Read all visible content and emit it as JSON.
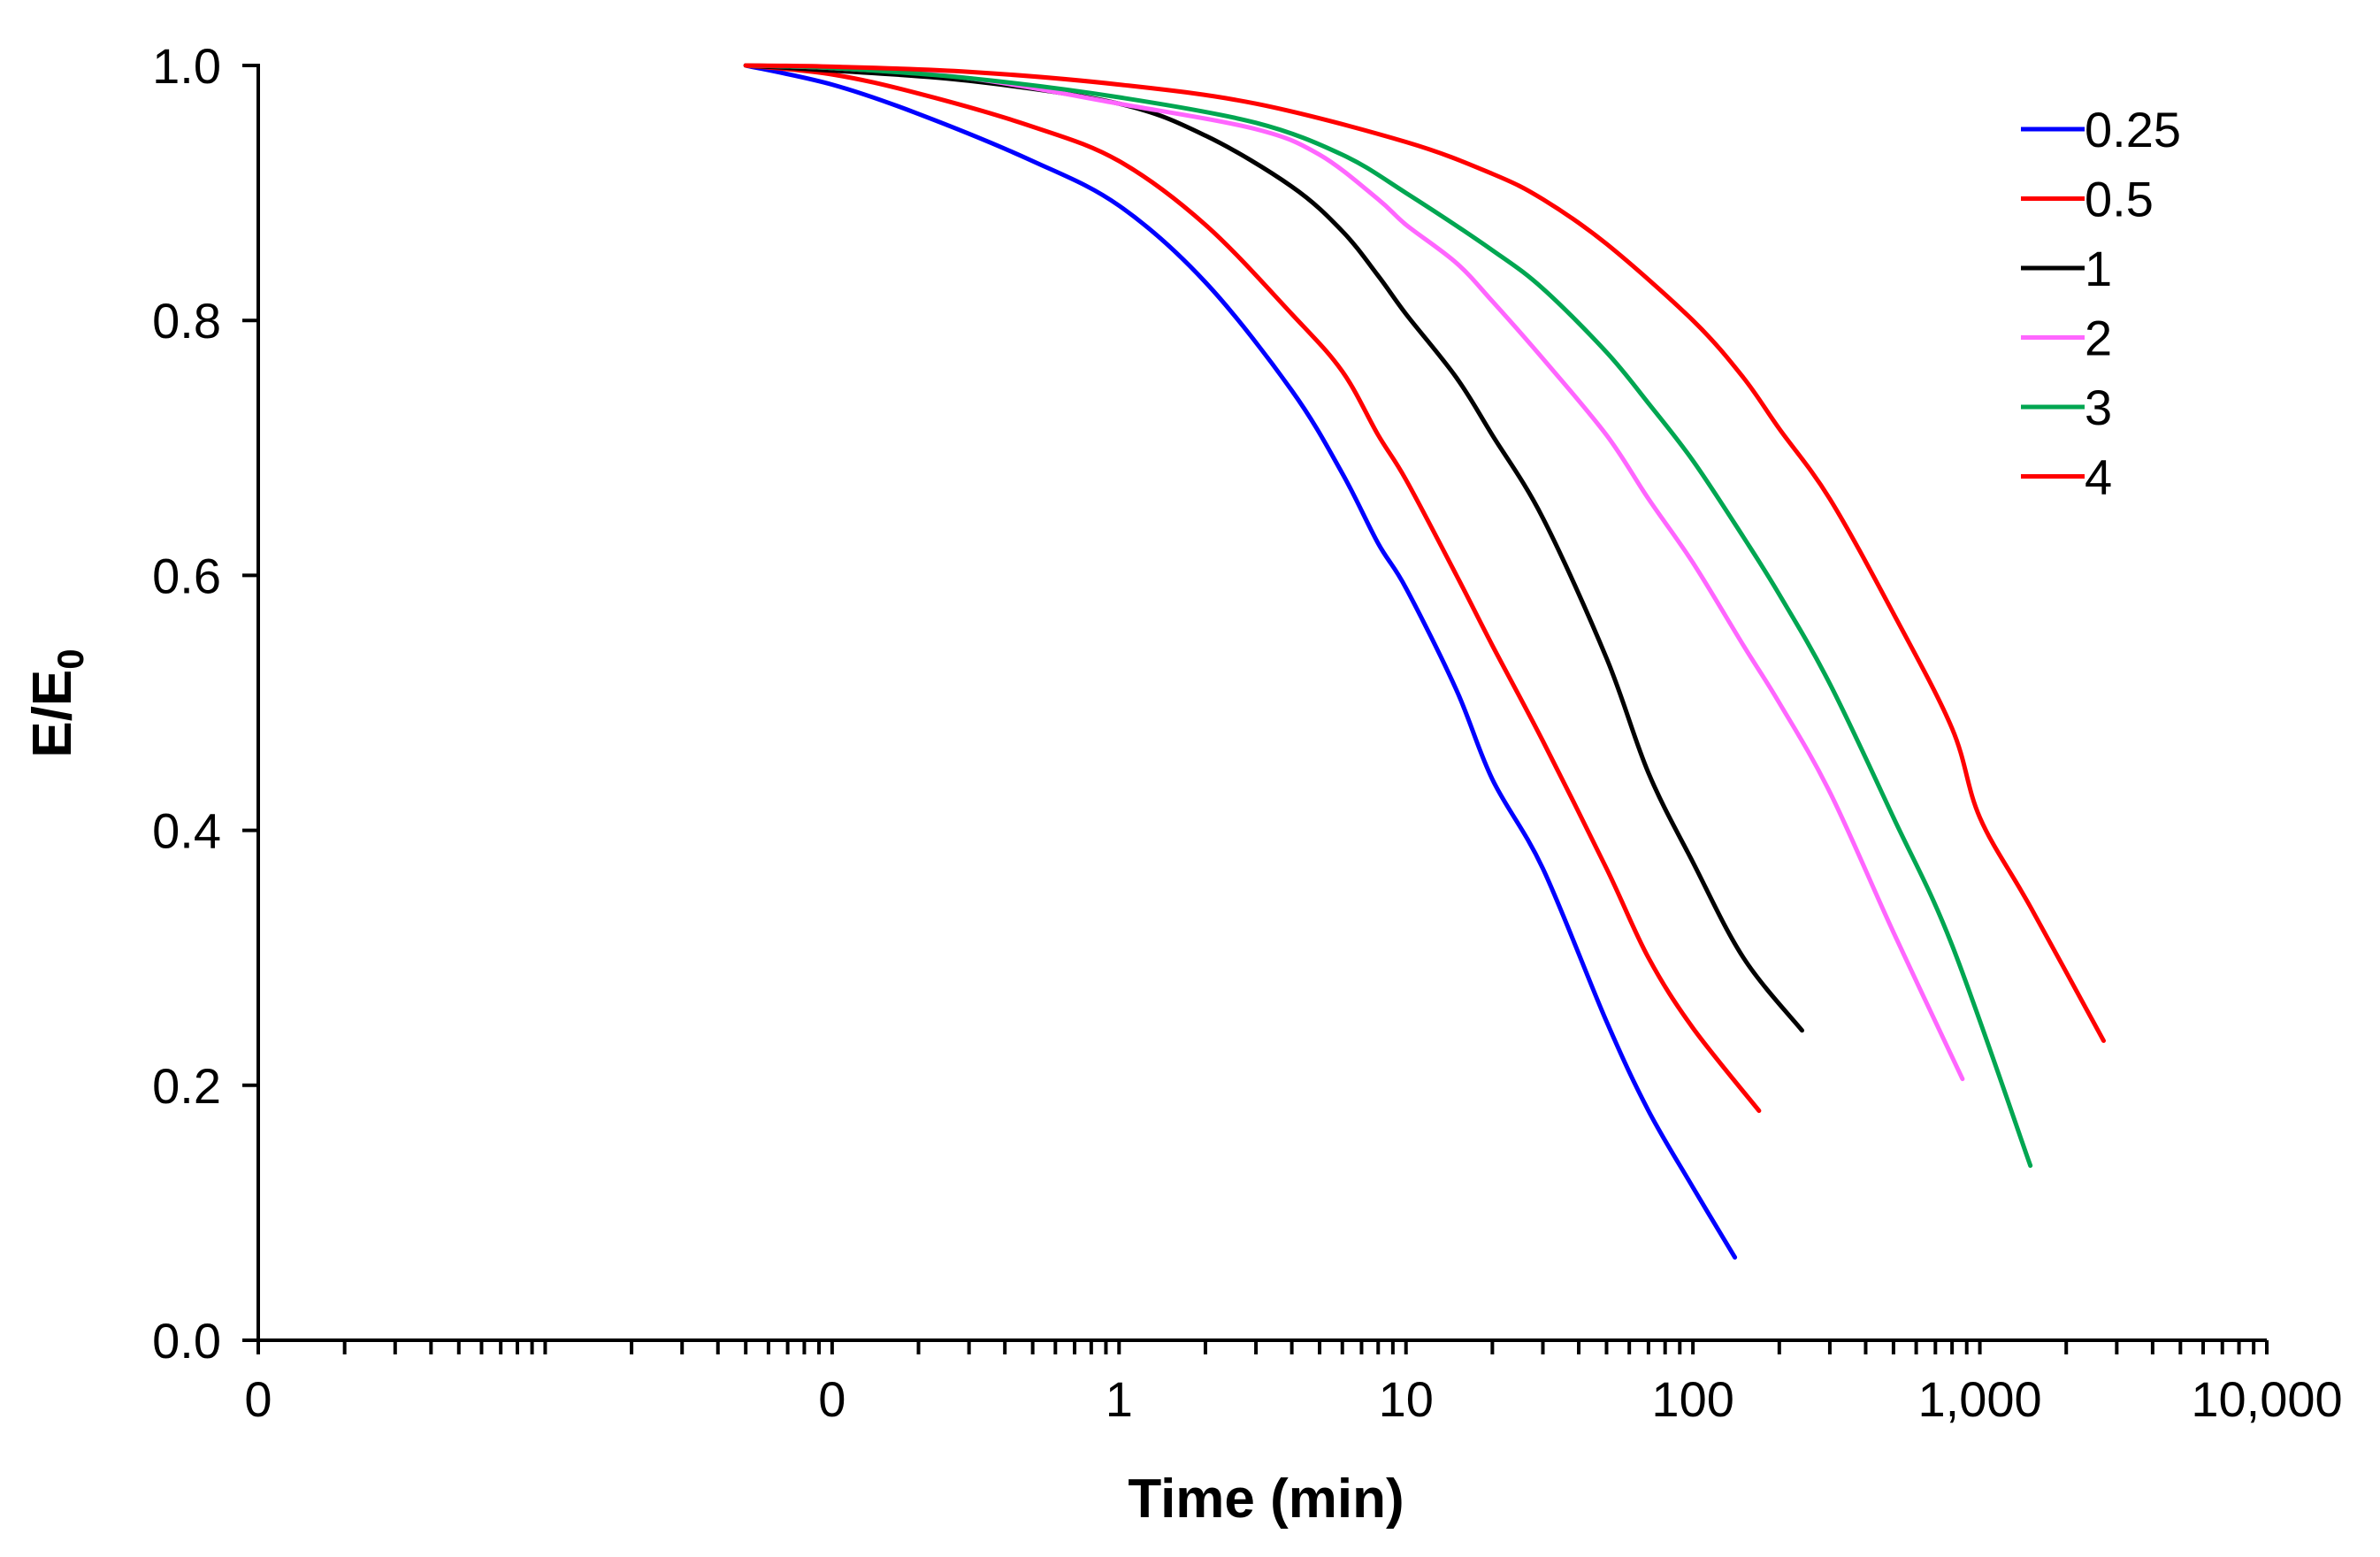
{
  "chart_data": {
    "type": "line",
    "title": "",
    "xlabel": "Time (min)",
    "ylabel_main": "E/E",
    "ylabel_sub": "0",
    "x_scale": "log",
    "xlim": [
      0.001,
      10000
    ],
    "ylim": [
      0.0,
      1.0
    ],
    "x_tick_values": [
      0.001,
      0.01,
      0.1,
      1,
      10,
      100,
      1000,
      10000
    ],
    "x_tick_labels": [
      "0",
      "",
      "0",
      "1",
      "10",
      "100",
      "1,000",
      "10,000"
    ],
    "y_tick_values": [
      0.0,
      0.2,
      0.4,
      0.6,
      0.8,
      1.0
    ],
    "y_tick_labels": [
      "0.0",
      "0.2",
      "0.4",
      "0.6",
      "0.8",
      "1.0"
    ],
    "legend_position": "top-right",
    "series": [
      {
        "name": "0.25",
        "color": "#0000ff",
        "x": [
          0.05,
          0.1,
          0.2,
          0.5,
          1,
          2,
          4,
          6,
          8,
          10,
          15,
          20,
          30,
          50,
          70,
          100,
          140
        ],
        "y": [
          1.0,
          0.985,
          0.962,
          0.925,
          0.89,
          0.83,
          0.745,
          0.68,
          0.625,
          0.59,
          0.51,
          0.44,
          0.37,
          0.25,
          0.18,
          0.12,
          0.065
        ]
      },
      {
        "name": "0.5",
        "color": "#ff0000",
        "x": [
          0.05,
          0.1,
          0.2,
          0.5,
          1,
          2,
          4,
          6,
          8,
          10,
          15,
          20,
          30,
          50,
          70,
          100,
          170
        ],
        "y": [
          1.0,
          0.993,
          0.978,
          0.952,
          0.925,
          0.875,
          0.805,
          0.76,
          0.71,
          0.675,
          0.6,
          0.545,
          0.47,
          0.37,
          0.3,
          0.245,
          0.18
        ]
      },
      {
        "name": "1",
        "color": "#000000",
        "x": [
          0.05,
          0.1,
          0.3,
          1,
          2,
          4,
          6,
          8,
          10,
          15,
          20,
          30,
          50,
          70,
          100,
          150,
          240
        ],
        "y": [
          1.0,
          0.996,
          0.988,
          0.97,
          0.945,
          0.905,
          0.87,
          0.835,
          0.805,
          0.755,
          0.71,
          0.645,
          0.535,
          0.445,
          0.375,
          0.3,
          0.243
        ]
      },
      {
        "name": "2",
        "color": "#ff66ff",
        "x": [
          0.05,
          0.1,
          0.3,
          1,
          3,
          5,
          8,
          10,
          15,
          20,
          30,
          50,
          70,
          100,
          150,
          200,
          300,
          500,
          870
        ],
        "y": [
          1.0,
          0.998,
          0.99,
          0.97,
          0.95,
          0.93,
          0.895,
          0.875,
          0.845,
          0.815,
          0.77,
          0.71,
          0.66,
          0.61,
          0.545,
          0.5,
          0.43,
          0.32,
          0.205
        ]
      },
      {
        "name": "3",
        "color": "#00a651",
        "x": [
          0.05,
          0.1,
          0.3,
          1,
          3,
          6,
          10,
          20,
          30,
          50,
          70,
          100,
          150,
          200,
          300,
          500,
          800,
          1500
        ],
        "y": [
          1.0,
          0.998,
          0.99,
          0.975,
          0.955,
          0.93,
          0.9,
          0.855,
          0.825,
          0.775,
          0.735,
          0.69,
          0.63,
          0.585,
          0.515,
          0.41,
          0.31,
          0.137
        ]
      },
      {
        "name": "4",
        "color": "#ff0000",
        "x": [
          0.05,
          0.1,
          0.3,
          1,
          3,
          10,
          20,
          30,
          50,
          100,
          150,
          200,
          300,
          500,
          800,
          1000,
          1500,
          2700
        ],
        "y": [
          1.0,
          0.999,
          0.995,
          0.985,
          0.97,
          0.94,
          0.915,
          0.895,
          0.86,
          0.8,
          0.755,
          0.715,
          0.66,
          0.57,
          0.48,
          0.41,
          0.34,
          0.235
        ]
      }
    ]
  }
}
